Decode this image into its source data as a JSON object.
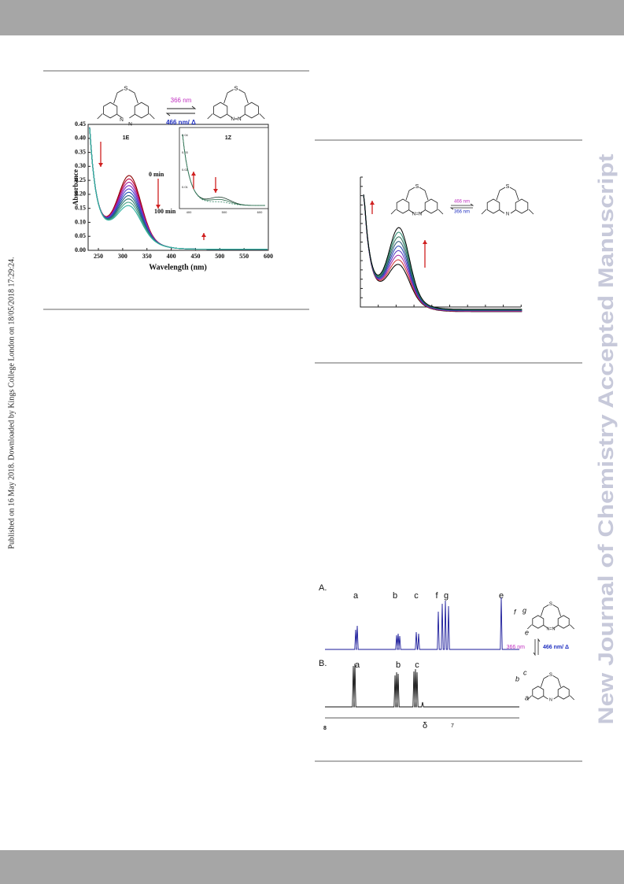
{
  "sidebar": "Published on 16 May 2018. Downloaded by Kings College London on 18/05/2018 17:29:24.",
  "watermark": "New Journal of Chemistry Accepted Manuscript",
  "figure1": {
    "scheme": {
      "forward": "366 nm",
      "reverse": "466 nm/ Δ",
      "left_label": "1E",
      "right_label": "1Z",
      "atoms_left": [
        "S",
        "N",
        "N"
      ],
      "atoms_right": [
        "S",
        "N=N"
      ]
    },
    "y_axis_label": "Absorbance",
    "x_axis_label": "Wavelength (nm)",
    "yticks": [
      "0.45",
      "0.40",
      "0.35",
      "0.30",
      "0.25",
      "0.20",
      "0.15",
      "0.10",
      "0.05",
      "0.00"
    ],
    "xticks": [
      250,
      300,
      350,
      400,
      450,
      500,
      550,
      600
    ],
    "time_start": "0 min",
    "time_end": "100 min",
    "inset_yticks": [
      "0.04",
      "0.03",
      "0.02",
      "0.01"
    ],
    "inset_xticks": [
      400,
      500,
      600
    ]
  },
  "figure2": {
    "scheme": {
      "forward": "466 nm",
      "reverse": "366 nm",
      "atoms_left": [
        "S",
        "N=N"
      ],
      "atoms_right": [
        "S",
        "N"
      ]
    }
  },
  "figure3": {
    "panel_a": "A.",
    "panel_b": "B.",
    "peaks_a": [
      "a",
      "b",
      "c",
      "f",
      "g",
      "e"
    ],
    "peaks_b": [
      "a",
      "b",
      "c"
    ],
    "axis_left": "8",
    "axis_symbol": "δ",
    "axis_right": "7",
    "scheme": {
      "reverse": "366 nm",
      "forward": "466 nm/ Δ",
      "atoms_top": [
        "S",
        "N=N"
      ],
      "atoms_bottom": [
        "S",
        "N"
      ],
      "labels_top": [
        "f",
        "g",
        "e"
      ],
      "labels_bottom": [
        "b",
        "c",
        "a"
      ]
    }
  }
}
